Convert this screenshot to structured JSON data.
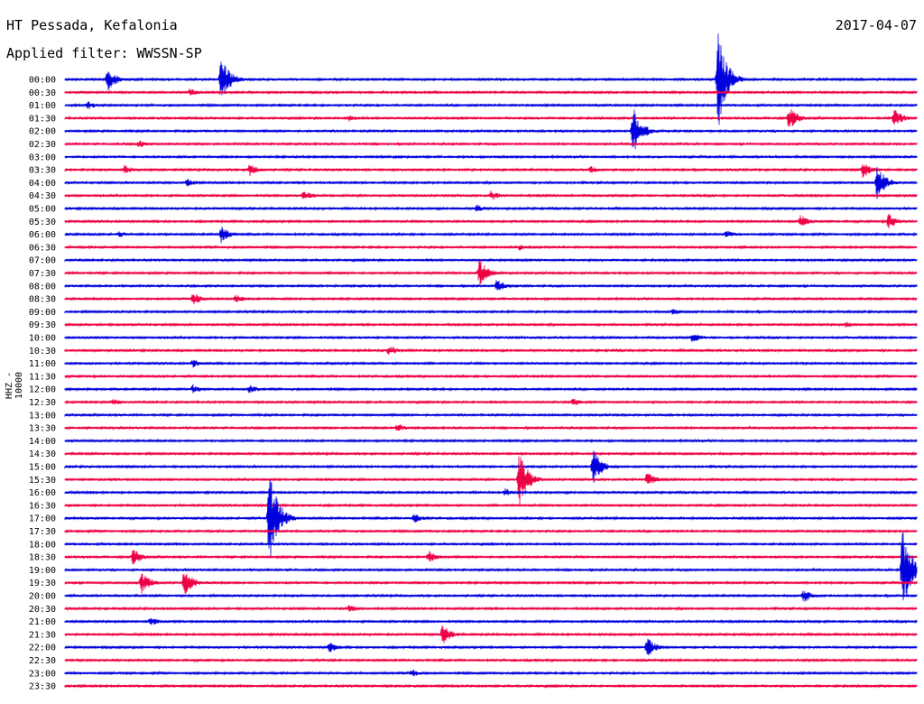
{
  "header": {
    "station": "HT Pessada, Kefalonia",
    "date": "2017-04-07",
    "filter": "Applied filter: WWSSN-SP"
  },
  "chart_data": {
    "type": "line",
    "title": "HT Pessada, Kefalonia",
    "ylabel": "HHZ - 10000",
    "colors": {
      "even_row": "#0000dd",
      "odd_row": "#ee0044"
    },
    "rows": [
      "00:00",
      "00:30",
      "01:00",
      "01:30",
      "02:00",
      "02:30",
      "03:00",
      "03:30",
      "04:00",
      "04:30",
      "05:00",
      "05:30",
      "06:00",
      "06:30",
      "07:00",
      "07:30",
      "08:00",
      "08:30",
      "09:00",
      "09:30",
      "10:00",
      "10:30",
      "11:00",
      "11:30",
      "12:00",
      "12:30",
      "13:00",
      "13:30",
      "14:00",
      "14:30",
      "15:00",
      "15:30",
      "16:00",
      "16:30",
      "17:00",
      "17:30",
      "18:00",
      "18:30",
      "19:00",
      "19:30",
      "20:00",
      "20:30",
      "21:00",
      "21:30",
      "22:00",
      "22:30",
      "23:00",
      "23:30"
    ],
    "x_range_minutes": [
      0,
      30
    ],
    "events": [
      {
        "row": "00:00",
        "minute": 1.5,
        "amp": 14
      },
      {
        "row": "00:00",
        "minute": 5.5,
        "amp": 28
      },
      {
        "row": "00:00",
        "minute": 23.0,
        "amp": 58
      },
      {
        "row": "00:30",
        "minute": 4.4,
        "amp": 5
      },
      {
        "row": "01:00",
        "minute": 0.8,
        "amp": 5
      },
      {
        "row": "01:30",
        "minute": 10.0,
        "amp": 4
      },
      {
        "row": "01:30",
        "minute": 25.5,
        "amp": 14
      },
      {
        "row": "01:30",
        "minute": 29.2,
        "amp": 12
      },
      {
        "row": "02:00",
        "minute": 20.0,
        "amp": 30
      },
      {
        "row": "02:30",
        "minute": 2.6,
        "amp": 5
      },
      {
        "row": "03:30",
        "minute": 2.1,
        "amp": 6
      },
      {
        "row": "03:30",
        "minute": 6.5,
        "amp": 8
      },
      {
        "row": "03:30",
        "minute": 18.5,
        "amp": 5
      },
      {
        "row": "03:30",
        "minute": 28.1,
        "amp": 10
      },
      {
        "row": "04:00",
        "minute": 4.3,
        "amp": 5
      },
      {
        "row": "04:00",
        "minute": 28.6,
        "amp": 20
      },
      {
        "row": "04:30",
        "minute": 8.4,
        "amp": 7
      },
      {
        "row": "04:30",
        "minute": 15.0,
        "amp": 6
      },
      {
        "row": "05:00",
        "minute": 14.5,
        "amp": 5
      },
      {
        "row": "05:30",
        "minute": 25.9,
        "amp": 8
      },
      {
        "row": "05:30",
        "minute": 29.0,
        "amp": 9
      },
      {
        "row": "06:00",
        "minute": 1.9,
        "amp": 4
      },
      {
        "row": "06:00",
        "minute": 5.5,
        "amp": 10
      },
      {
        "row": "06:00",
        "minute": 23.3,
        "amp": 5
      },
      {
        "row": "06:30",
        "minute": 16.0,
        "amp": 4
      },
      {
        "row": "07:30",
        "minute": 14.6,
        "amp": 16
      },
      {
        "row": "08:00",
        "minute": 15.2,
        "amp": 8
      },
      {
        "row": "08:30",
        "minute": 4.5,
        "amp": 9
      },
      {
        "row": "08:30",
        "minute": 6.0,
        "amp": 6
      },
      {
        "row": "09:00",
        "minute": 21.4,
        "amp": 5
      },
      {
        "row": "09:30",
        "minute": 27.5,
        "amp": 4
      },
      {
        "row": "10:00",
        "minute": 22.1,
        "amp": 7
      },
      {
        "row": "10:30",
        "minute": 11.4,
        "amp": 7
      },
      {
        "row": "11:00",
        "minute": 4.5,
        "amp": 5
      },
      {
        "row": "12:00",
        "minute": 4.5,
        "amp": 6
      },
      {
        "row": "12:00",
        "minute": 6.5,
        "amp": 6
      },
      {
        "row": "12:30",
        "minute": 1.7,
        "amp": 4
      },
      {
        "row": "12:30",
        "minute": 17.9,
        "amp": 5
      },
      {
        "row": "13:30",
        "minute": 11.7,
        "amp": 6
      },
      {
        "row": "15:00",
        "minute": 18.6,
        "amp": 20
      },
      {
        "row": "15:30",
        "minute": 16.0,
        "amp": 32
      },
      {
        "row": "15:30",
        "minute": 20.5,
        "amp": 9
      },
      {
        "row": "16:00",
        "minute": 15.5,
        "amp": 5
      },
      {
        "row": "17:00",
        "minute": 7.2,
        "amp": 58
      },
      {
        "row": "17:00",
        "minute": 12.3,
        "amp": 6
      },
      {
        "row": "18:30",
        "minute": 2.4,
        "amp": 10
      },
      {
        "row": "18:30",
        "minute": 12.8,
        "amp": 8
      },
      {
        "row": "19:00",
        "minute": 29.5,
        "amp": 52
      },
      {
        "row": "19:30",
        "minute": 2.7,
        "amp": 13
      },
      {
        "row": "19:30",
        "minute": 4.2,
        "amp": 16
      },
      {
        "row": "20:00",
        "minute": 26.0,
        "amp": 9
      },
      {
        "row": "20:30",
        "minute": 10.0,
        "amp": 5
      },
      {
        "row": "21:00",
        "minute": 3.0,
        "amp": 6
      },
      {
        "row": "21:30",
        "minute": 13.3,
        "amp": 12
      },
      {
        "row": "22:00",
        "minute": 9.3,
        "amp": 7
      },
      {
        "row": "22:00",
        "minute": 20.5,
        "amp": 12
      },
      {
        "row": "23:00",
        "minute": 12.2,
        "amp": 5
      }
    ]
  }
}
